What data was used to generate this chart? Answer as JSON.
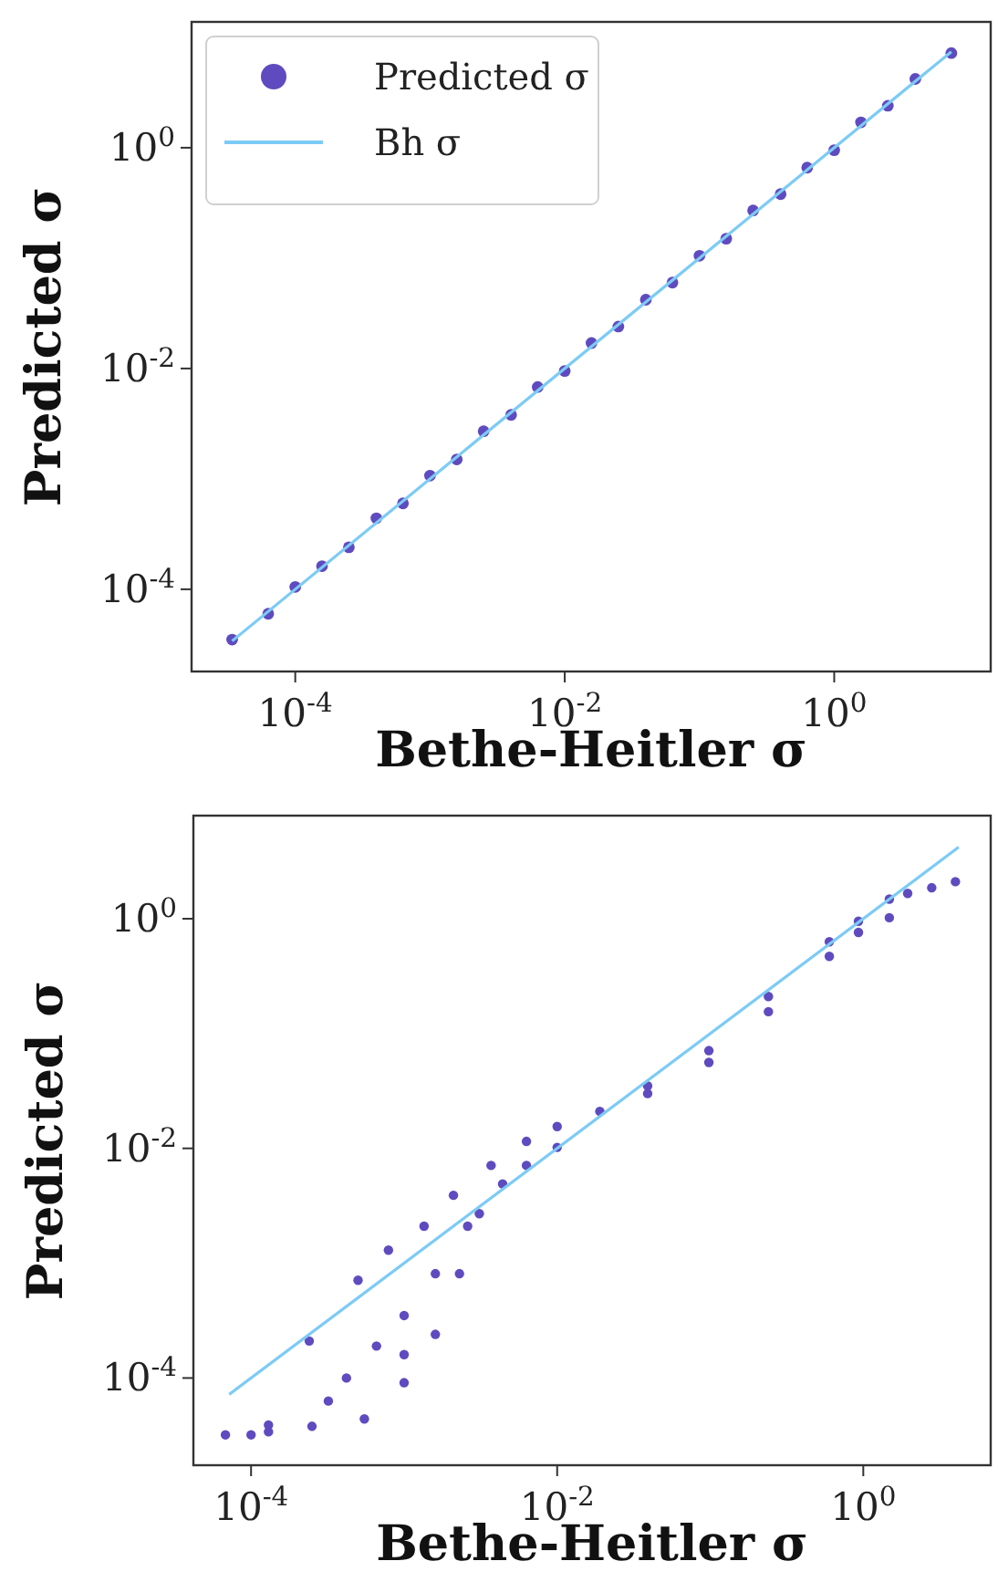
{
  "chart_data": [
    {
      "type": "scatter",
      "xlabel": "Bethe-Heitler σ",
      "ylabel": "Predicted σ",
      "log": "xy",
      "legend": "top left",
      "marker": "circle",
      "xlim": [
        1.7e-05,
        14.5
      ],
      "ylim": [
        1.8e-05,
        13.8
      ],
      "xticks": [
        {
          "value": 0.0001,
          "label": "10$^{-4}$"
        },
        {
          "value": 0.01,
          "label": "10$^{-2}$"
        },
        {
          "value": 1,
          "label": "10$^{0}$"
        }
      ],
      "yticks": [
        {
          "value": 0.0001,
          "label": "10$^{-4}$"
        },
        {
          "value": 0.01,
          "label": "10$^{-2}$"
        },
        {
          "value": 1,
          "label": "10$^{0}$"
        }
      ],
      "series": [
        {
          "name": "Predicted σ",
          "color": "#5f4bbf",
          "x": [
            3.4e-05,
            6.3e-05,
            0.0001,
            0.000158,
            0.00025,
            0.0004,
            0.00063,
            0.001,
            0.00158,
            0.0025,
            0.004,
            0.0063,
            0.01,
            0.0158,
            0.025,
            0.04,
            0.063,
            0.1,
            0.158,
            0.25,
            0.4,
            0.63,
            1.0,
            1.58,
            2.5,
            4.0,
            7.4
          ],
          "values": [
            3.5e-05,
            6e-05,
            0.000105,
            0.000162,
            0.00024,
            0.00044,
            0.0006,
            0.00107,
            0.0015,
            0.0027,
            0.0038,
            0.0068,
            0.0095,
            0.017,
            0.024,
            0.042,
            0.06,
            0.105,
            0.15,
            0.27,
            0.38,
            0.66,
            0.95,
            1.7,
            2.4,
            4.2,
            7.2
          ]
        },
        {
          "name": "Bh σ",
          "type": "line",
          "marker": "none",
          "color": "#7ccbf5",
          "x": [
            3.4e-05,
            7.4
          ],
          "values": [
            3.4e-05,
            7.4
          ]
        }
      ]
    },
    {
      "type": "scatter",
      "xlabel": "Bethe-Heitler σ",
      "ylabel": "Predicted σ",
      "log": "xy",
      "marker": "circle",
      "xlim": [
        4.2e-05,
        6.8
      ],
      "ylim": [
        1.74e-05,
        7.9
      ],
      "xticks": [
        {
          "value": 0.0001,
          "label": "10$^{-4}$"
        },
        {
          "value": 0.01,
          "label": "10$^{-2}$"
        },
        {
          "value": 1,
          "label": "10$^{0}$"
        }
      ],
      "yticks": [
        {
          "value": 0.0001,
          "label": "10$^{-4}$"
        },
        {
          "value": 0.01,
          "label": "10$^{-2}$"
        },
        {
          "value": 1,
          "label": "10$^{0}$"
        }
      ],
      "series": [
        {
          "color": "#5f4bbf",
          "x": [
            6.8e-05,
            0.0001,
            0.00013,
            0.00025,
            0.00055,
            0.001,
            0.0016,
            0.0023,
            0.0031,
            0.0044,
            0.0063,
            0.01,
            0.00013,
            0.00024,
            0.0005,
            0.00079,
            0.00135,
            0.0021,
            0.0037,
            0.0063,
            0.01,
            0.019,
            0.039,
            0.098,
            0.24,
            0.6,
            0.93,
            1.48,
            1.95,
            2.8,
            4.0,
            0.039,
            0.098,
            0.24,
            0.6,
            0.93,
            1.48,
            0.00042,
            0.00066,
            0.001,
            0.0016,
            0.0026,
            0.00032,
            0.001
          ],
          "values": [
            3.2e-05,
            3.2e-05,
            3.4e-05,
            3.8e-05,
            4.4e-05,
            9.1e-05,
            0.00024,
            0.00081,
            0.0027,
            0.0049,
            0.0071,
            0.0102,
            3.9e-05,
            0.00021,
            0.00071,
            0.0013,
            0.0021,
            0.0039,
            0.0071,
            0.0115,
            0.0155,
            0.021,
            0.035,
            0.071,
            0.21,
            0.63,
            0.95,
            1.48,
            1.66,
            1.86,
            2.1,
            0.03,
            0.056,
            0.155,
            0.47,
            0.76,
            1.02,
            0.0001,
            0.00019,
            0.00035,
            0.00081,
            0.0021,
            6.3e-05,
            0.00016
          ]
        },
        {
          "type": "line",
          "marker": "none",
          "color": "#7ccbf5",
          "x": [
            7.2e-05,
            4.2
          ],
          "values": [
            7.2e-05,
            4.2
          ]
        }
      ]
    }
  ]
}
